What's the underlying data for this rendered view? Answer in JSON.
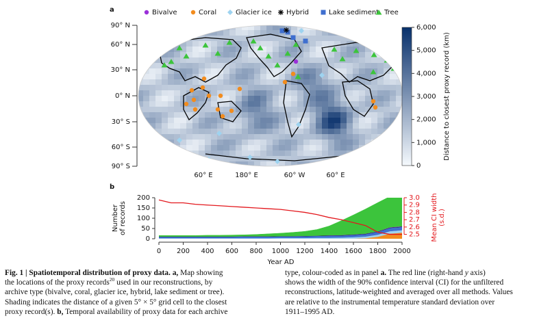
{
  "chart_data": [
    {
      "type": "map",
      "panel": "a",
      "lat_labels": [
        "90° N",
        "60° N",
        "30° N",
        "0° N",
        "30° S",
        "60° S",
        "90° S"
      ],
      "lon_labels": [
        "60° E",
        "180° E",
        "60° W",
        "60° E"
      ],
      "colorbar_label": "Distance to closest proxy record (km)",
      "ylim": [
        0,
        6000
      ],
      "yticks": [
        0,
        {
          "value": 1000,
          "label": "1,000"
        },
        {
          "value": 2000,
          "label": "2,000"
        },
        {
          "value": 3000,
          "label": "3,000"
        },
        {
          "value": 4000,
          "label": "4,000"
        },
        {
          "value": 5000,
          "label": "5,000"
        },
        {
          "value": 6000,
          "label": "6,000"
        }
      ],
      "colormap": [
        "#f5f9fd",
        "#08306b"
      ]
    },
    {
      "type": "area",
      "panel": "b",
      "xlabel": "Year AD",
      "ylabel_lines": [
        "Number",
        "of records"
      ],
      "y2label_lines": [
        "Mean CI width",
        "(s.d.)"
      ],
      "x": [
        0,
        100,
        200,
        300,
        400,
        500,
        600,
        700,
        800,
        900,
        1000,
        1100,
        1200,
        1300,
        1400,
        1500,
        1600,
        1700,
        1800,
        1900,
        2000
      ],
      "xlim": [
        0,
        2000
      ],
      "xticks": [
        0,
        200,
        400,
        600,
        800,
        1000,
        1200,
        1400,
        1600,
        1800,
        2000
      ],
      "ylim": [
        0,
        200
      ],
      "yticks": [
        0,
        50,
        100,
        150,
        200
      ],
      "y2lim": [
        2.44,
        3.0
      ],
      "y2ticks": [
        2.5,
        2.6,
        2.7,
        2.8,
        2.9,
        {
          "value": 3,
          "label": "3.0"
        }
      ],
      "series": [
        {
          "name": "Bivalve",
          "color": "#9b30d9",
          "values": [
            0,
            0,
            0,
            0,
            0,
            0,
            0,
            0,
            0,
            0,
            0,
            0,
            0,
            0,
            1,
            1,
            1,
            1,
            1,
            2,
            2
          ]
        },
        {
          "name": "Coral",
          "color": "#f28c1e",
          "values": [
            0,
            0,
            0,
            0,
            0,
            0,
            0,
            0,
            0,
            0,
            0,
            0,
            0,
            0,
            0,
            0,
            1,
            3,
            10,
            25,
            30
          ]
        },
        {
          "name": "Glacier ice",
          "color": "#9ed3f0",
          "values": [
            3,
            3,
            3,
            3,
            3,
            3,
            3,
            3,
            3,
            3,
            4,
            4,
            4,
            5,
            5,
            6,
            7,
            8,
            10,
            12,
            12
          ]
        },
        {
          "name": "Hybrid",
          "color": "#000000",
          "values": [
            1,
            1,
            1,
            1,
            1,
            1,
            1,
            1,
            1,
            1,
            1,
            1,
            1,
            1,
            1,
            1,
            1,
            1,
            1,
            1,
            1
          ]
        },
        {
          "name": "Lake sediment",
          "color": "#3f6fcf",
          "values": [
            7,
            7,
            7,
            7,
            7,
            7,
            7,
            8,
            8,
            8,
            8,
            8,
            9,
            9,
            10,
            10,
            11,
            12,
            14,
            16,
            16
          ]
        },
        {
          "name": "Tree",
          "color": "#3cc43c",
          "values": [
            5,
            5,
            5,
            5,
            6,
            6,
            7,
            7,
            9,
            12,
            14,
            18,
            22,
            30,
            45,
            70,
            95,
            120,
            140,
            150,
            140
          ]
        },
        {
          "color": "#e3171c",
          "axis": "y2",
          "values": [
            2.97,
            2.93,
            2.93,
            2.91,
            2.9,
            2.89,
            2.88,
            2.87,
            2.86,
            2.85,
            2.84,
            2.82,
            2.8,
            2.77,
            2.73,
            2.7,
            2.66,
            2.62,
            2.53,
            2.5,
            2.5
          ]
        }
      ]
    }
  ],
  "caption": {
    "left": [
      [
        "Fig. 1 | Spatiotemporal distribution of proxy data.",
        " a,",
        " Map showing"
      ],
      [
        "the locations of the proxy records",
        "20",
        " used in our reconstructions, by"
      ],
      [
        "archive type (bivalve, coral, glacier ice, hybrid, lake sediment or tree)."
      ],
      [
        "Shading indicates the distance of a given 5° × 5° grid cell to the closest"
      ],
      [
        "proxy record(s). ",
        "b,",
        " Temporal availability of proxy data for each archive"
      ]
    ],
    "right": [
      [
        "type, colour-coded as in panel ",
        "a.",
        " The red line (right-hand ",
        "y",
        " axis)"
      ],
      [
        "shows the width of the 90% confidence interval (CI) for the unfiltered"
      ],
      [
        "reconstructions, latitude-weighted and averaged over all methods. Values"
      ],
      [
        "are relative to the instrumental temperature standard deviation over"
      ],
      [
        "1911–1995 AD."
      ]
    ]
  }
}
